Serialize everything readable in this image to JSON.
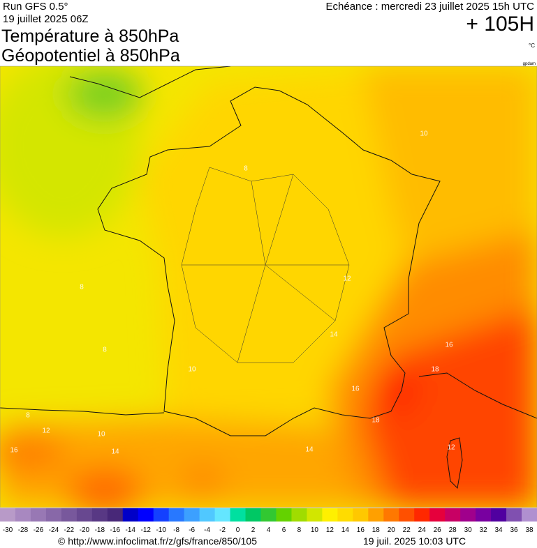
{
  "header": {
    "run": "Run GFS 0.5°",
    "run_date": "19 juillet 2025 06Z",
    "title_1": "Température à 850hPa",
    "title_2": "Géopotentiel à 850hPa",
    "forecast": "Echéance : mercredi 23 juillet 2025 15h UTC",
    "lead_time": "+ 105H",
    "unit": "°C",
    "contour_unit": "gpdam"
  },
  "map": {
    "contour_labels": [
      "10",
      "8",
      "8",
      "8",
      "10",
      "12",
      "14",
      "16",
      "18",
      "16",
      "18",
      "8",
      "12",
      "10",
      "16",
      "14",
      "14",
      "12"
    ]
  },
  "colorbar": {
    "labels": [
      -30,
      -28,
      -26,
      -24,
      -22,
      -20,
      -18,
      -16,
      -14,
      -12,
      -10,
      -8,
      -6,
      -4,
      -2,
      0,
      2,
      4,
      6,
      8,
      10,
      12,
      14,
      16,
      18,
      20,
      22,
      24,
      26,
      28,
      30,
      32,
      34,
      36,
      38
    ],
    "colors": [
      "#b89ac8",
      "#a888c0",
      "#9878b4",
      "#8868a8",
      "#78589c",
      "#684890",
      "#583884",
      "#482878",
      "#0000c8",
      "#0000ff",
      "#1440ff",
      "#2878ff",
      "#3ca0ff",
      "#50c8ff",
      "#64e6ff",
      "#00e0a0",
      "#00c864",
      "#32c832",
      "#64d200",
      "#a0dc00",
      "#d2e600",
      "#fff000",
      "#ffdc00",
      "#ffc800",
      "#ffa000",
      "#ff7800",
      "#ff5000",
      "#ff2800",
      "#e6003c",
      "#c80064",
      "#a0008c",
      "#7800a0",
      "#5000a0",
      "#8050b0",
      "#b090d0"
    ]
  },
  "footer": {
    "url": "© http://www.infoclimat.fr/z/gfs/france/850/105",
    "timestamp": "19 juil. 2025 10:03 UTC"
  }
}
